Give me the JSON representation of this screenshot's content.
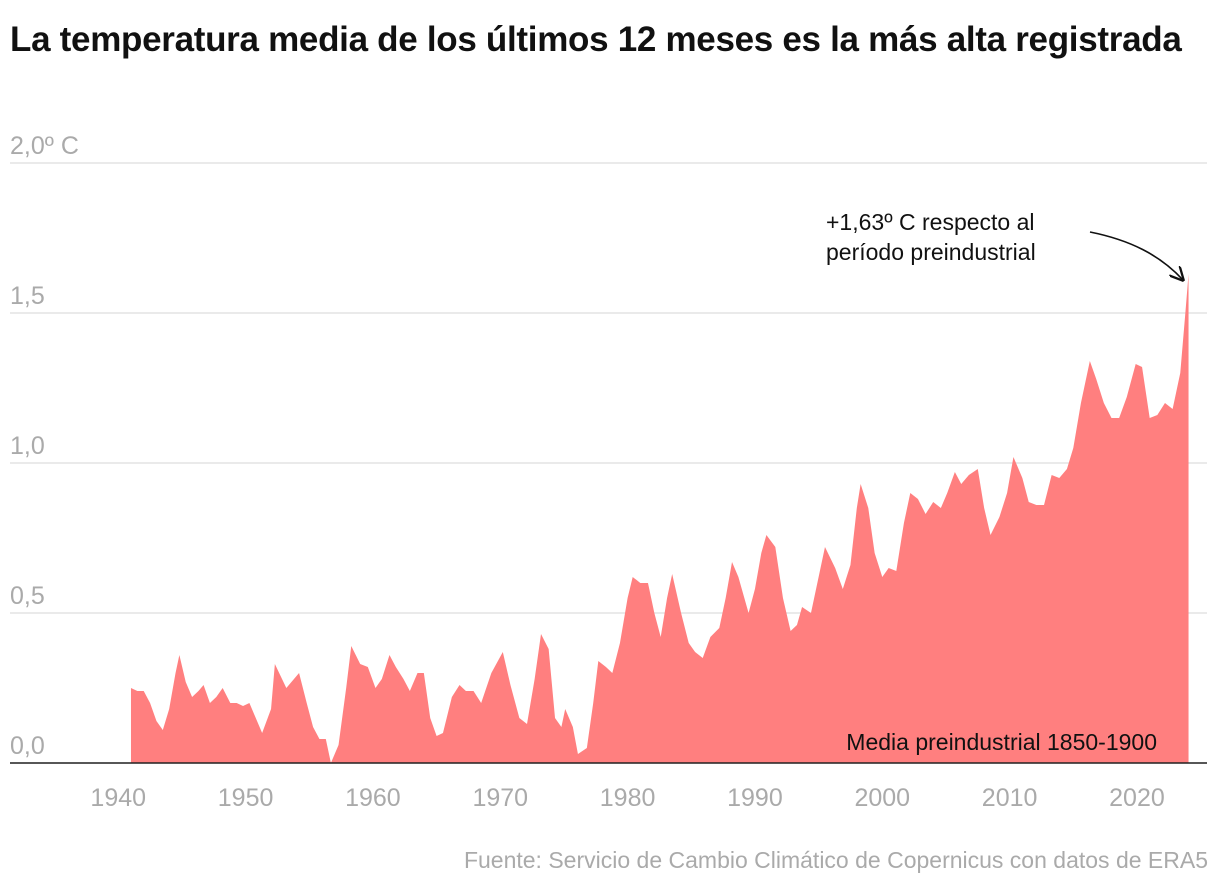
{
  "chart_data": {
    "type": "area",
    "title": "La temperatura media de los últimos 12 meses es la más alta registrada",
    "annotation_lines": [
      "+1,63º C respecto al",
      "período preindustrial"
    ],
    "baseline_label": "Media preindustrial 1850-1900",
    "source": "Fuente: Servicio de Cambio Climático de Copernicus con datos de ERA5",
    "color": "#ff7f7f",
    "xlim": [
      1931.5,
      2025.5
    ],
    "ylim": [
      0,
      2
    ],
    "xticks": [
      1940,
      1950,
      1960,
      1970,
      1980,
      1990,
      2000,
      2010,
      2020
    ],
    "yticks": [
      {
        "value": 0,
        "label": "0,0"
      },
      {
        "value": 0.5,
        "label": "0,5"
      },
      {
        "value": 1,
        "label": "1,0"
      },
      {
        "value": 1.5,
        "label": "1,5"
      },
      {
        "value": 2,
        "label": "2,0º C"
      }
    ],
    "grid": true,
    "x": [
      1941.0,
      1941.5,
      1942.0,
      1942.5,
      1943.0,
      1943.5,
      1944.0,
      1944.5,
      1944.8,
      1945.3,
      1945.8,
      1946.3,
      1946.7,
      1947.2,
      1947.7,
      1948.2,
      1948.8,
      1949.3,
      1949.8,
      1950.3,
      1950.8,
      1951.3,
      1952.0,
      1952.3,
      1953.2,
      1953.8,
      1954.2,
      1954.8,
      1955.3,
      1955.8,
      1956.3,
      1956.7,
      1957.3,
      1957.9,
      1958.3,
      1959.0,
      1959.6,
      1960.2,
      1960.7,
      1961.3,
      1961.8,
      1962.4,
      1962.9,
      1963.5,
      1964.0,
      1964.5,
      1965.0,
      1965.5,
      1966.2,
      1966.8,
      1967.3,
      1967.9,
      1968.5,
      1969.3,
      1970.2,
      1970.8,
      1971.5,
      1972.1,
      1972.7,
      1973.2,
      1973.8,
      1974.3,
      1974.8,
      1975.1,
      1975.7,
      1976.1,
      1976.8,
      1977.3,
      1977.7,
      1978.3,
      1978.8,
      1979.4,
      1980.0,
      1980.4,
      1981.0,
      1981.6,
      1982.1,
      1982.6,
      1983.1,
      1983.5,
      1984.2,
      1984.8,
      1985.3,
      1985.9,
      1986.5,
      1987.2,
      1987.7,
      1988.2,
      1988.7,
      1989.5,
      1990.0,
      1990.5,
      1990.9,
      1991.6,
      1992.2,
      1992.8,
      1993.3,
      1993.7,
      1994.4,
      1995.0,
      1995.5,
      1996.3,
      1996.9,
      1997.5,
      1998.0,
      1998.3,
      1998.9,
      1999.4,
      2000.0,
      2000.5,
      2001.1,
      2001.7,
      2002.2,
      2002.8,
      2003.4,
      2004.0,
      2004.6,
      2005.1,
      2005.7,
      2006.2,
      2006.8,
      2007.5,
      2008.0,
      2008.5,
      2009.2,
      2009.8,
      2010.3,
      2011.0,
      2011.5,
      2012.1,
      2012.7,
      2013.3,
      2013.9,
      2014.5,
      2015.0,
      2015.6,
      2016.3,
      2016.8,
      2017.4,
      2018.0,
      2018.6,
      2019.2,
      2019.9,
      2020.4,
      2021.0,
      2021.6,
      2022.2,
      2022.8,
      2023.4,
      2023.8,
      2024.05
    ],
    "values": [
      0.25,
      0.24,
      0.24,
      0.2,
      0.14,
      0.11,
      0.18,
      0.3,
      0.36,
      0.27,
      0.22,
      0.24,
      0.26,
      0.2,
      0.22,
      0.25,
      0.2,
      0.2,
      0.19,
      0.2,
      0.15,
      0.1,
      0.18,
      0.33,
      0.25,
      0.28,
      0.3,
      0.2,
      0.12,
      0.08,
      0.08,
      0.0,
      0.06,
      0.25,
      0.39,
      0.33,
      0.32,
      0.25,
      0.28,
      0.36,
      0.32,
      0.28,
      0.24,
      0.3,
      0.3,
      0.15,
      0.09,
      0.1,
      0.22,
      0.26,
      0.24,
      0.24,
      0.2,
      0.3,
      0.37,
      0.26,
      0.15,
      0.13,
      0.28,
      0.43,
      0.38,
      0.15,
      0.12,
      0.18,
      0.12,
      0.03,
      0.05,
      0.2,
      0.34,
      0.32,
      0.3,
      0.4,
      0.55,
      0.62,
      0.6,
      0.6,
      0.5,
      0.42,
      0.55,
      0.63,
      0.5,
      0.4,
      0.37,
      0.35,
      0.42,
      0.45,
      0.55,
      0.67,
      0.62,
      0.5,
      0.58,
      0.7,
      0.76,
      0.72,
      0.55,
      0.44,
      0.46,
      0.52,
      0.5,
      0.62,
      0.72,
      0.65,
      0.58,
      0.66,
      0.85,
      0.93,
      0.85,
      0.7,
      0.62,
      0.65,
      0.64,
      0.8,
      0.9,
      0.88,
      0.83,
      0.87,
      0.85,
      0.9,
      0.97,
      0.93,
      0.96,
      0.98,
      0.85,
      0.76,
      0.82,
      0.9,
      1.02,
      0.95,
      0.87,
      0.86,
      0.86,
      0.96,
      0.95,
      0.98,
      1.05,
      1.2,
      1.34,
      1.28,
      1.2,
      1.15,
      1.15,
      1.22,
      1.33,
      1.32,
      1.15,
      1.16,
      1.2,
      1.18,
      1.3,
      1.5,
      1.63
    ]
  }
}
